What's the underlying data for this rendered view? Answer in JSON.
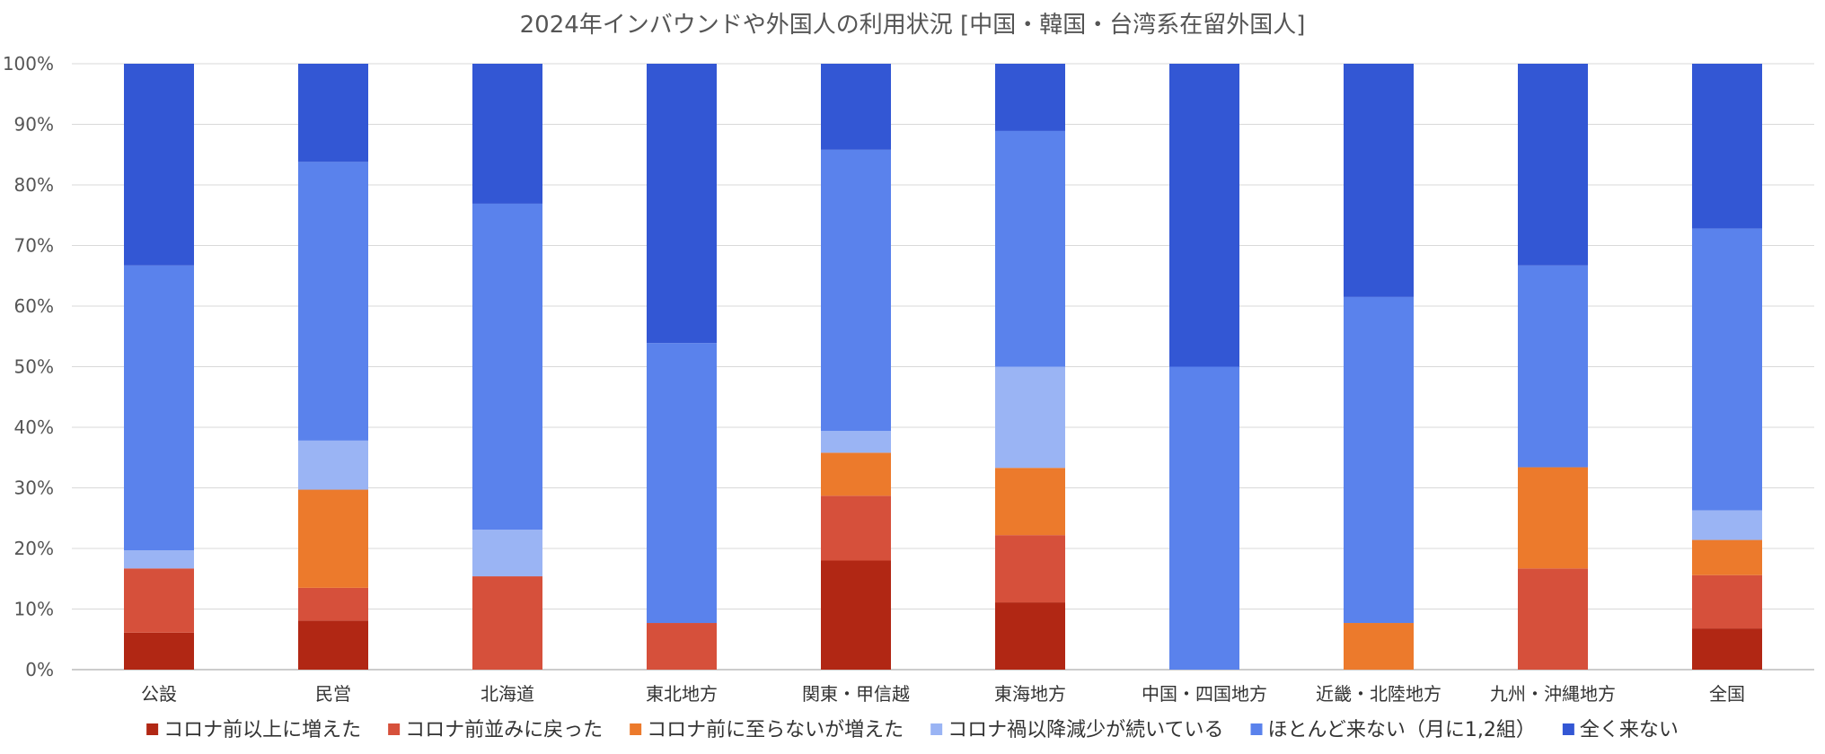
{
  "chart_data": {
    "type": "bar",
    "stacked": true,
    "percent": true,
    "title": "2024年インバウンドや外国人の利用状況 [中国・韓国・台湾系在留外国人]",
    "xlabel": "",
    "ylabel": "",
    "ylim": [
      0,
      100
    ],
    "yticks": [
      "0%",
      "10%",
      "20%",
      "30%",
      "40%",
      "50%",
      "60%",
      "70%",
      "80%",
      "90%",
      "100%"
    ],
    "grid": true,
    "legend_position": "bottom",
    "categories": [
      "公設",
      "民営",
      "北海道",
      "東北地方",
      "関東・甲信越",
      "東海地方",
      "中国・四国地方",
      "近畿・北陸地方",
      "九州・沖縄地方",
      "全国"
    ],
    "series": [
      {
        "name": "コロナ前以上に増えた",
        "color": "#b12714",
        "values": [
          6.1,
          8.1,
          0,
          0,
          18.0,
          11.1,
          0,
          0,
          0,
          6.8
        ]
      },
      {
        "name": "コロナ前並みに戻った",
        "color": "#d6503b",
        "values": [
          10.6,
          5.4,
          15.4,
          7.7,
          10.7,
          11.1,
          0,
          0,
          16.7,
          8.8
        ]
      },
      {
        "name": "コロナ前に至らないが増えた",
        "color": "#ec7a2c",
        "values": [
          0,
          16.2,
          0,
          0,
          7.1,
          11.1,
          0,
          7.7,
          16.7,
          5.8
        ]
      },
      {
        "name": "コロナ禍以降減少が続いている",
        "color": "#9ab4f4",
        "values": [
          3.0,
          8.1,
          7.7,
          0,
          3.6,
          16.7,
          0,
          0,
          0,
          4.9
        ]
      },
      {
        "name": "ほとんど来ない（月に1,2組）",
        "color": "#5a82ec",
        "values": [
          47.0,
          46.0,
          53.8,
          46.2,
          46.4,
          38.9,
          50.0,
          53.8,
          33.3,
          46.5
        ]
      },
      {
        "name": "全く来ない",
        "color": "#3357d4",
        "values": [
          33.3,
          16.2,
          23.1,
          46.1,
          14.2,
          11.1,
          50.0,
          38.5,
          33.3,
          27.2
        ]
      }
    ]
  }
}
